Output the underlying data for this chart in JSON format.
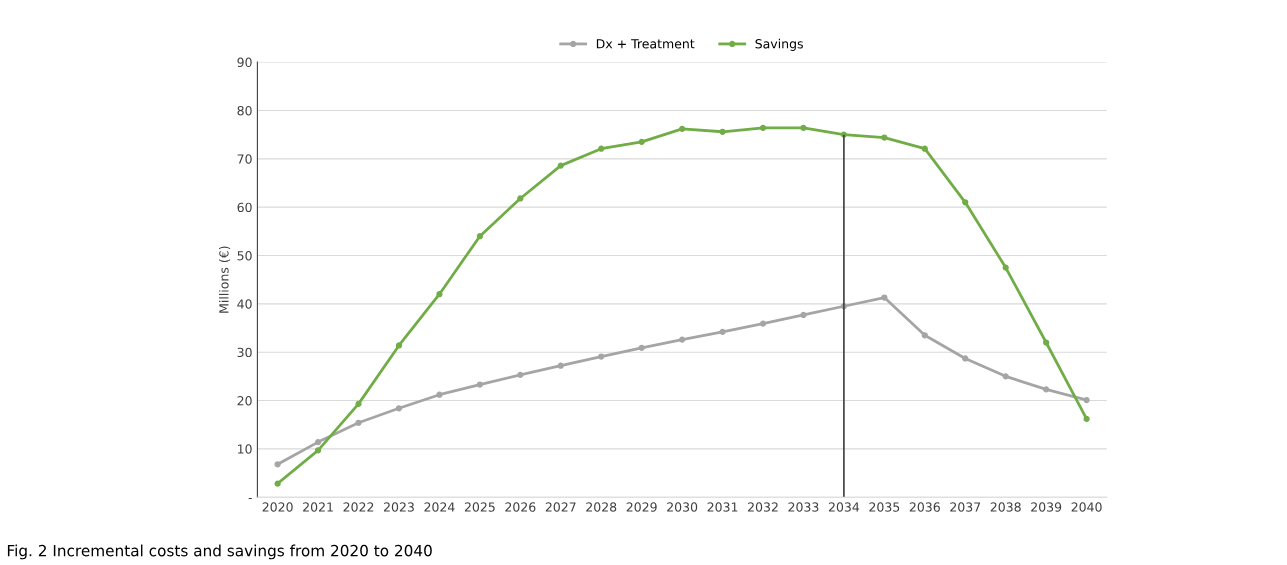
{
  "chart_data": {
    "type": "line",
    "ylabel": "Millions (€)",
    "categories": [
      "2020",
      "2021",
      "2022",
      "2023",
      "2024",
      "2025",
      "2026",
      "2027",
      "2028",
      "2029",
      "2030",
      "2031",
      "2032",
      "2033",
      "2034",
      "2035",
      "2036",
      "2037",
      "2038",
      "2039",
      "2040"
    ],
    "series": [
      {
        "name": "Dx + Treatment",
        "color": "#a5a5a5",
        "values": [
          6.8,
          11.4,
          15.4,
          18.4,
          21.2,
          23.3,
          25.3,
          27.2,
          29.1,
          30.9,
          32.6,
          34.2,
          35.9,
          37.7,
          39.5,
          41.3,
          33.5,
          28.7,
          25.0,
          22.3,
          20.1
        ]
      },
      {
        "name": "Savings",
        "color": "#70ad47",
        "values": [
          2.8,
          9.7,
          19.3,
          31.4,
          42.0,
          54.0,
          61.8,
          68.6,
          72.1,
          73.5,
          76.2,
          75.6,
          76.4,
          76.4,
          75.0,
          74.4,
          72.1,
          61.0,
          47.5,
          32.0,
          16.2
        ]
      }
    ],
    "ylim": [
      0,
      90
    ],
    "yticks": [
      {
        "value": 0,
        "label": "-"
      },
      10,
      20,
      30,
      40,
      50,
      60,
      70,
      80,
      90
    ],
    "grid": "y",
    "legend": "top",
    "marker": "circle",
    "line_style": "solid",
    "ref_lines": [
      {
        "axis": "x",
        "value": "2034",
        "color": "#404040"
      }
    ],
    "annotations": [
      "Fig. 2 Incremental costs and savings from 2020 to 2040"
    ]
  }
}
